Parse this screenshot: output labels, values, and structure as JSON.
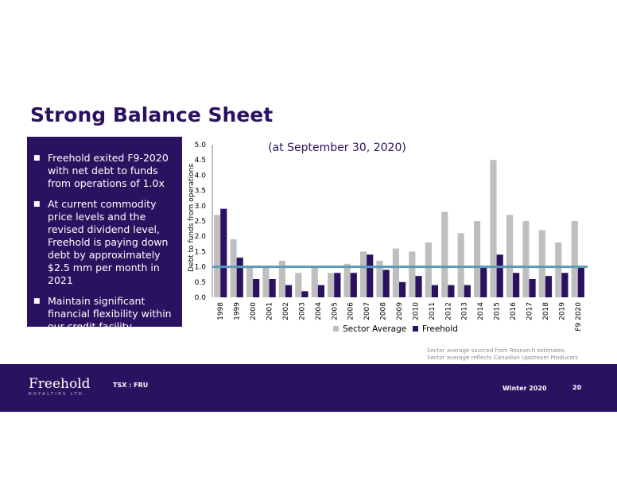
{
  "slide": {
    "title": "Strong Balance Sheet",
    "bullets": [
      "Freehold exited F9-2020 with net debt to funds from operations of 1.0x",
      "At current commodity price levels and the revised dividend level, Freehold is paying down debt by approximately $2.5 mm per month in 2021",
      "Maintain significant financial flexibility within our credit facility"
    ],
    "notes": [
      "Sector average sourced from Research estimates",
      "Sector average reflects Canadian  Upstream Producers"
    ]
  },
  "footer": {
    "brand": "Freehold",
    "brand_sub": "ROYALTIES LTD.",
    "ticker": "TSX : FRU",
    "season": "Winter 2020",
    "page": "20"
  },
  "chart_data": {
    "type": "bar",
    "title": "(at September 30, 2020)",
    "xlabel": "",
    "ylabel": "Debt to funds from operations",
    "ylim": [
      0,
      5
    ],
    "yticks": [
      "0.0",
      "0.5",
      "1.0",
      "1.5",
      "2.0",
      "2.5",
      "3.0",
      "3.5",
      "4.0",
      "4.5",
      "5.0"
    ],
    "reference_line": 1.0,
    "categories": [
      "1998",
      "1999",
      "2000",
      "2001",
      "2002",
      "2003",
      "2004",
      "2005",
      "2006",
      "2007",
      "2008",
      "2009",
      "2010",
      "2011",
      "2012",
      "2013",
      "2014",
      "2015",
      "2016",
      "2017",
      "2018",
      "2019",
      "F9 2020"
    ],
    "series": [
      {
        "name": "Sector Average",
        "color": "#bfbfbf",
        "values": [
          2.7,
          1.9,
          1.0,
          1.0,
          1.2,
          0.8,
          1.0,
          0.8,
          1.1,
          1.5,
          1.2,
          1.6,
          1.5,
          1.8,
          2.8,
          2.1,
          2.5,
          4.5,
          2.7,
          2.5,
          2.2,
          1.8,
          2.5
        ]
      },
      {
        "name": "Freehold",
        "color": "#2b1260",
        "values": [
          2.9,
          1.3,
          0.6,
          0.6,
          0.4,
          0.2,
          0.4,
          0.8,
          0.8,
          1.4,
          0.9,
          0.5,
          0.7,
          0.4,
          0.4,
          0.4,
          1.0,
          1.4,
          0.8,
          0.6,
          0.7,
          0.8,
          1.0
        ]
      }
    ],
    "legend_position": "bottom",
    "reference_line_color": "#5b9ab8"
  }
}
